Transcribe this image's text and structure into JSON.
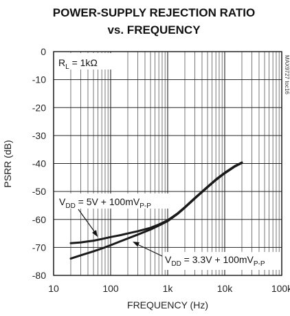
{
  "chart_data": {
    "type": "line",
    "title_line1": "POWER-SUPPLY REJECTION RATIO",
    "title_line2": "vs. FREQUENCY",
    "xlabel": "FREQUENCY (Hz)",
    "ylabel": "PSRR (dB)",
    "x_scale": "log",
    "xlim": [
      10,
      100000
    ],
    "ylim": [
      -80,
      0
    ],
    "x_ticks": [
      {
        "value": 10,
        "label": "10"
      },
      {
        "value": 100,
        "label": "100"
      },
      {
        "value": 1000,
        "label": "1k"
      },
      {
        "value": 10000,
        "label": "10k"
      },
      {
        "value": 100000,
        "label": "100k"
      }
    ],
    "y_ticks": [
      {
        "value": 0,
        "label": "0"
      },
      {
        "value": -10,
        "label": "-10"
      },
      {
        "value": -20,
        "label": "-20"
      },
      {
        "value": -30,
        "label": "-30"
      },
      {
        "value": -40,
        "label": "-40"
      },
      {
        "value": -50,
        "label": "-50"
      },
      {
        "value": -60,
        "label": "-60"
      },
      {
        "value": -70,
        "label": "-70"
      },
      {
        "value": -80,
        "label": "-80"
      }
    ],
    "grid": true,
    "condition_box": {
      "main": "R",
      "sub": "L",
      "rest": " = 1kΩ"
    },
    "side_label": "MAX9727 toc16",
    "series": [
      {
        "x": [
          20,
          30,
          50,
          70,
          100,
          150,
          200,
          300,
          500,
          700,
          1000,
          1500,
          2000,
          3000,
          5000,
          7000,
          10000,
          15000,
          20000
        ],
        "y": [
          -68.5,
          -68.2,
          -67.6,
          -67.0,
          -66.3,
          -65.6,
          -65.0,
          -64.2,
          -63.0,
          -61.8,
          -60.3,
          -57.8,
          -55.6,
          -52.3,
          -48.3,
          -45.7,
          -43.3,
          -40.9,
          -39.6
        ]
      },
      {
        "x": [
          20,
          30,
          50,
          70,
          100,
          150,
          200,
          300,
          500,
          700,
          1000,
          1500,
          2000,
          3000,
          5000,
          7000,
          10000,
          15000,
          20000
        ],
        "y": [
          -74.0,
          -72.8,
          -71.4,
          -70.4,
          -69.2,
          -67.8,
          -66.8,
          -65.4,
          -63.6,
          -62.2,
          -60.6,
          -58.0,
          -55.8,
          -52.5,
          -48.5,
          -45.9,
          -43.5,
          -41.1,
          -39.8
        ]
      }
    ],
    "annotations": [
      {
        "pre": "V",
        "sub1": "DD",
        "mid": " = 5V + 100mV",
        "sub2": "P-P"
      },
      {
        "pre": "V",
        "sub1": "DD",
        "mid": " = 3.3V + 100mV",
        "sub2": "P-P"
      }
    ]
  }
}
